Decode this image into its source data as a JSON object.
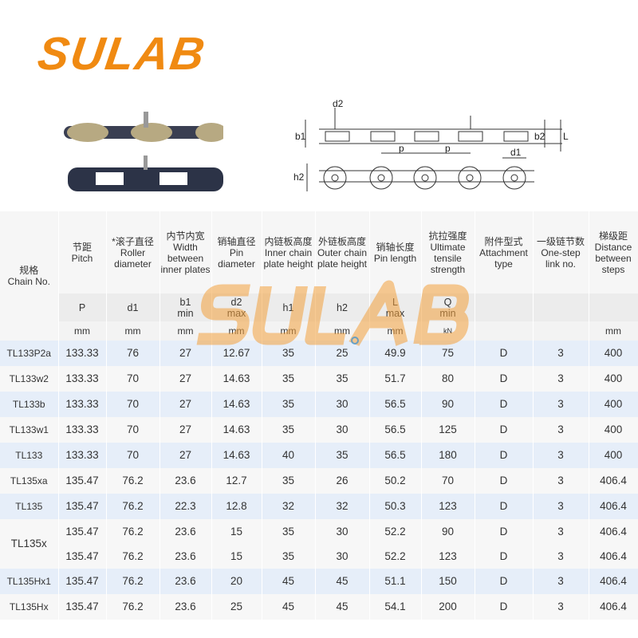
{
  "logo": {
    "text": "SULAB",
    "colors": {
      "orange": "#f08a12",
      "blue": "#2f8fd6"
    }
  },
  "diagram": {
    "labels": {
      "d2": "d2",
      "b1": "b1",
      "b2": "b2",
      "L": "L",
      "p": "p",
      "d1": "d1",
      "h2": "h2"
    }
  },
  "watermark": "SULAB",
  "table": {
    "headers": [
      {
        "zh": "规格",
        "en": "Chain No."
      },
      {
        "zh": "节距",
        "en": "Pitch",
        "sym": "P",
        "sym2": "",
        "unit": "mm"
      },
      {
        "zh": "*滚子直径",
        "en": "Roller diameter",
        "sym": "d1",
        "sym2": "",
        "unit": "mm"
      },
      {
        "zh": "内节内宽",
        "en": "Width between inner plates",
        "sym": "b1",
        "sym2": "min",
        "unit": "mm"
      },
      {
        "zh": "销轴直径",
        "en": "Pin diameter",
        "sym": "d2",
        "sym2": "max",
        "unit": "mm"
      },
      {
        "zh": "内链板高度",
        "en": "Inner chain plate height",
        "sym": "h1",
        "sym2": "",
        "unit": "mm"
      },
      {
        "zh": "外链板高度",
        "en": "Outer chain plate height",
        "sym": "h2",
        "sym2": "",
        "unit": "mm"
      },
      {
        "zh": "销轴长度",
        "en": "Pin length",
        "sym": "L",
        "sym2": "max",
        "unit": "mm"
      },
      {
        "zh": "抗拉强度",
        "en": "Ultimate tensile strength",
        "sym": "Q",
        "sym2": "min",
        "unit": "kN"
      },
      {
        "zh": "附件型式",
        "en": "Attachment type",
        "sym": "",
        "sym2": "",
        "unit": ""
      },
      {
        "zh": "一级链节数",
        "en": "One-step link no.",
        "sym": "",
        "sym2": "",
        "unit": ""
      },
      {
        "zh": "梯级距",
        "en": "Distance between steps",
        "sym": "",
        "sym2": "",
        "unit": "mm"
      }
    ],
    "rows": [
      {
        "name": "TL133P2a",
        "values": [
          [
            "133.33",
            "76",
            "27",
            "12.67",
            "35",
            "25",
            "49.9",
            "75",
            "D",
            "3",
            "400"
          ]
        ]
      },
      {
        "name": "TL133w2",
        "values": [
          [
            "133.33",
            "70",
            "27",
            "14.63",
            "35",
            "35",
            "51.7",
            "80",
            "D",
            "3",
            "400"
          ]
        ]
      },
      {
        "name": "TL133b",
        "values": [
          [
            "133.33",
            "70",
            "27",
            "14.63",
            "35",
            "30",
            "56.5",
            "90",
            "D",
            "3",
            "400"
          ]
        ]
      },
      {
        "name": "TL133w1",
        "values": [
          [
            "133.33",
            "70",
            "27",
            "14.63",
            "35",
            "30",
            "56.5",
            "125",
            "D",
            "3",
            "400"
          ]
        ]
      },
      {
        "name": "TL133",
        "values": [
          [
            "133.33",
            "70",
            "27",
            "14.63",
            "40",
            "35",
            "56.5",
            "180",
            "D",
            "3",
            "400"
          ]
        ]
      },
      {
        "name": "TL135xa",
        "values": [
          [
            "135.47",
            "76.2",
            "23.6",
            "12.7",
            "35",
            "26",
            "50.2",
            "70",
            "D",
            "3",
            "406.4"
          ]
        ]
      },
      {
        "name": "TL135",
        "values": [
          [
            "135.47",
            "76.2",
            "22.3",
            "12.8",
            "32",
            "32",
            "50.3",
            "123",
            "D",
            "3",
            "406.4"
          ]
        ]
      },
      {
        "name": "TL135x",
        "values": [
          [
            "135.47",
            "76.2",
            "23.6",
            "15",
            "35",
            "30",
            "52.2",
            "90",
            "D",
            "3",
            "406.4"
          ],
          [
            "135.47",
            "76.2",
            "23.6",
            "15",
            "35",
            "30",
            "52.2",
            "123",
            "D",
            "3",
            "406.4"
          ]
        ]
      },
      {
        "name": "TL135Hx1",
        "values": [
          [
            "135.47",
            "76.2",
            "23.6",
            "20",
            "45",
            "45",
            "51.1",
            "150",
            "D",
            "3",
            "406.4"
          ]
        ]
      },
      {
        "name": "TL135Hx",
        "values": [
          [
            "135.47",
            "76.2",
            "23.6",
            "25",
            "45",
            "45",
            "54.1",
            "200",
            "D",
            "3",
            "406.4"
          ]
        ]
      }
    ]
  }
}
